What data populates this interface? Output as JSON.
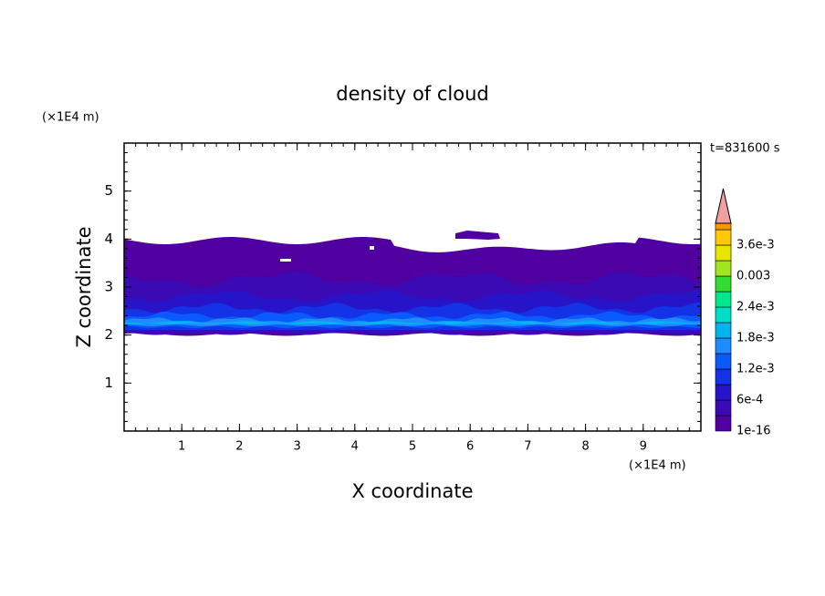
{
  "chart_data": {
    "type": "contour",
    "title": "density of cloud",
    "x_label": "X coordinate",
    "y_label": "Z coordinate",
    "x_unit": "(×1E4 m)",
    "y_unit": "(×1E4 m)",
    "time_label": "t=831600 s",
    "xlim": [
      0,
      10
    ],
    "xticks": [
      1,
      2,
      3,
      4,
      5,
      6,
      7,
      8,
      9
    ],
    "ylim": [
      0,
      6
    ],
    "yticks": [
      1,
      2,
      3,
      4,
      5
    ],
    "colorbar": {
      "ticks": [
        1e-16,
        {
          "value": 0.0006,
          "label": "6e-4"
        },
        {
          "value": 0.0012,
          "label": "1.2e-3"
        },
        {
          "value": 0.0018,
          "label": "1.8e-3"
        },
        {
          "value": 0.0024,
          "label": "2.4e-3"
        },
        0.003,
        {
          "value": 0.0036,
          "label": "3.6e-3"
        }
      ],
      "colors": [
        "#5000a0",
        "#3c0ab4",
        "#2814c8",
        "#1432e6",
        "#0a5aff",
        "#1e8cff",
        "#00b4f0",
        "#00dcc8",
        "#00e68c",
        "#32dc32",
        "#a0e61e",
        "#e6e600",
        "#ffc800",
        "#ff9600",
        "#ff6400",
        "#ff3200"
      ],
      "extend_color": "#f0a0a0"
    }
  }
}
